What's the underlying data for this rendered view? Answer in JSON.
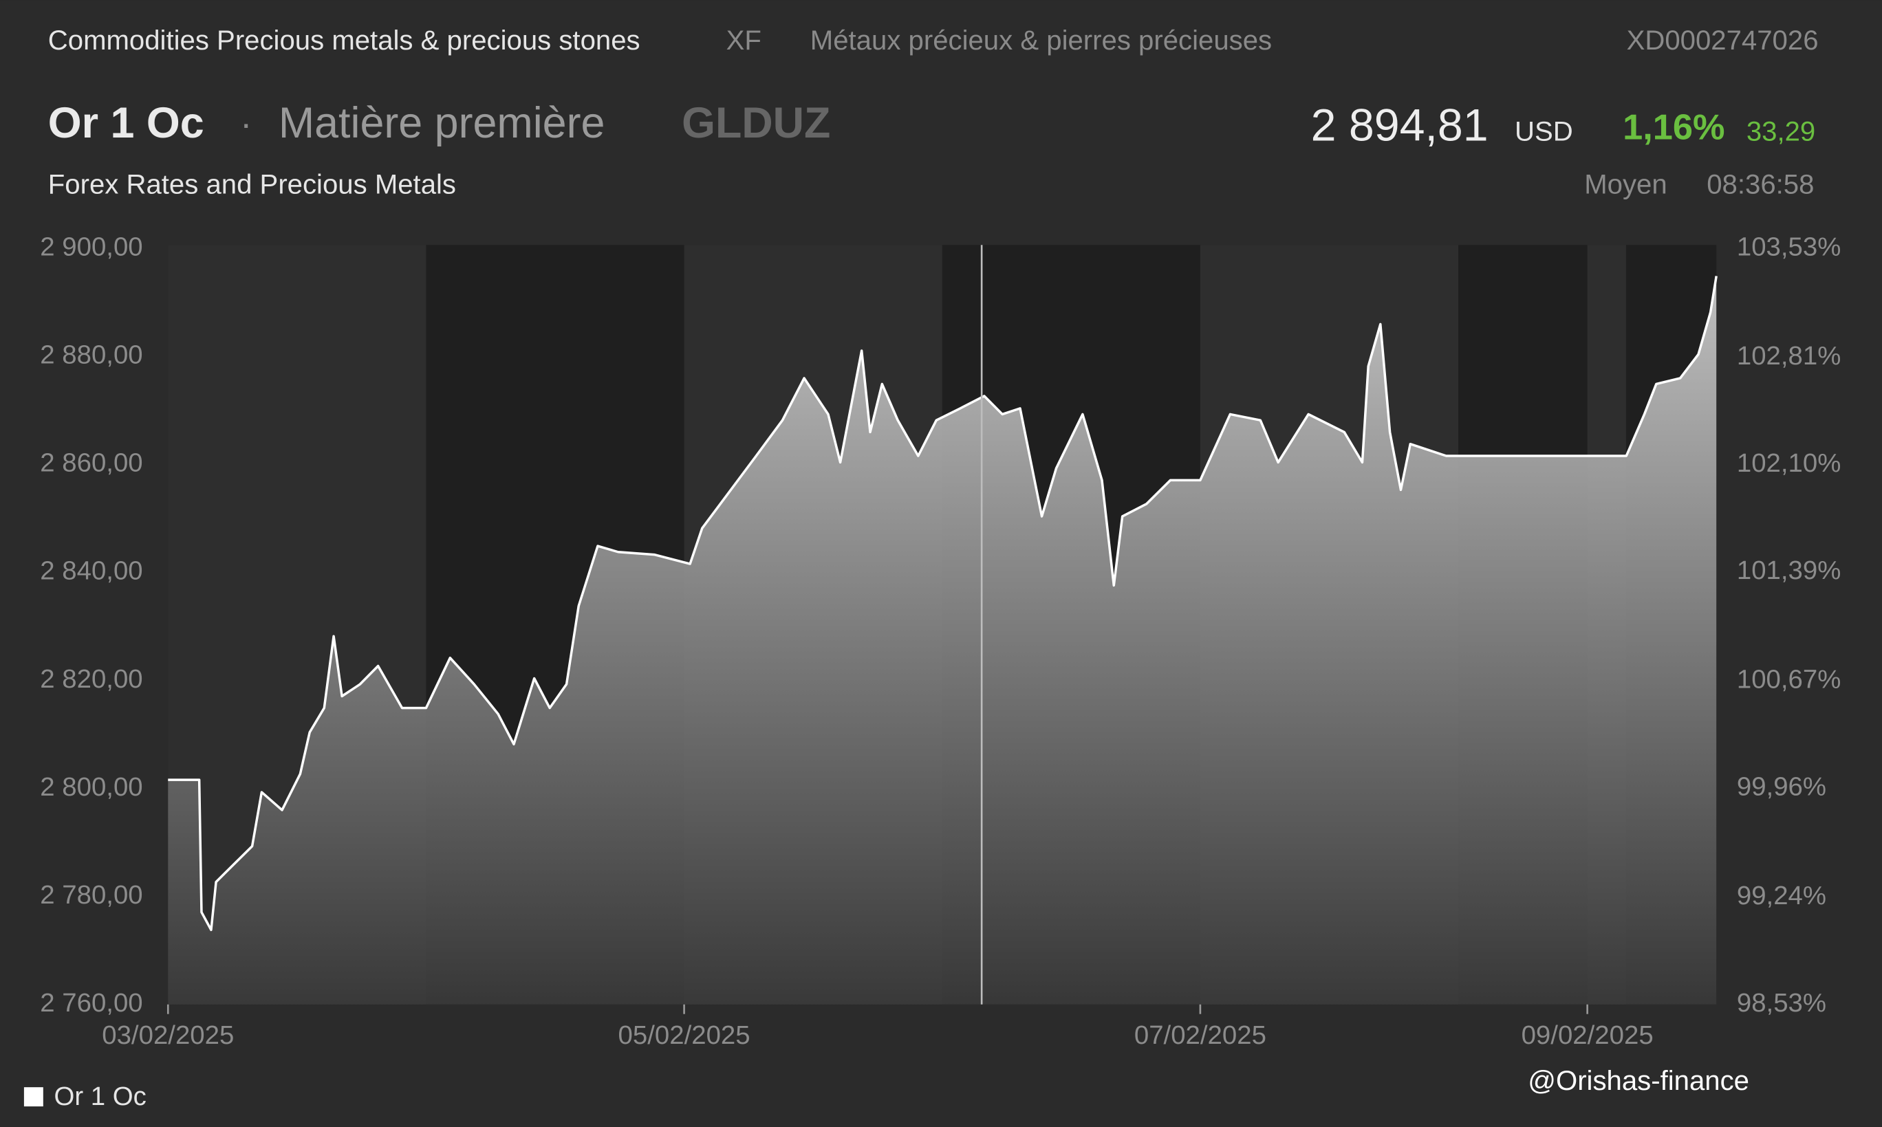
{
  "header": {
    "category": "Commodities Precious metals & precious stones",
    "exchange": "XF",
    "category_fr": "Métaux précieux & pierres précieuses",
    "isin": "XD0002747026",
    "name": "Or 1 Oc",
    "separator": "·",
    "asset_type": "Matière première",
    "symbol": "GLDUZ",
    "price": "2 894,81",
    "currency": "USD",
    "change_percent": "1,16%",
    "change": "33,29",
    "source": "Forex Rates and Precious Metals",
    "price_type": "Moyen",
    "time": "08:36:58",
    "watermark": "@Orishas-finance"
  },
  "chart_data": {
    "type": "area",
    "x": [
      0,
      0.121,
      0.13,
      0.167,
      0.186,
      0.256,
      0.326,
      0.363,
      0.442,
      0.512,
      0.549,
      0.605,
      0.642,
      0.674,
      0.744,
      0.814,
      0.907,
      1.0,
      1.093,
      1.186,
      1.279,
      1.34,
      1.419,
      1.479,
      1.544,
      1.591,
      1.665,
      1.744,
      1.884,
      2.023,
      2.07,
      2.14,
      2.279,
      2.381,
      2.465,
      2.558,
      2.605,
      2.688,
      2.721,
      2.767,
      2.828,
      2.907,
      2.977,
      3.07,
      3.163,
      3.233,
      3.302,
      3.386,
      3.442,
      3.544,
      3.619,
      3.665,
      3.698,
      3.791,
      3.884,
      4.0,
      4.116,
      4.233,
      4.302,
      4.419,
      4.558,
      4.628,
      4.651,
      4.698,
      4.735,
      4.777,
      4.814,
      4.884,
      4.953,
      5.651,
      5.721,
      5.767,
      5.86,
      5.93,
      5.977,
      6.0
    ],
    "series": [
      {
        "name": "Or 1 Oc",
        "color": "#ffffff",
        "values": [
          2801.6,
          2801.6,
          2777.1,
          2773.8,
          2782.7,
          2786,
          2789.3,
          2799.3,
          2796,
          2802.7,
          2810.4,
          2814.9,
          2828.2,
          2817.1,
          2819.3,
          2822.7,
          2814.9,
          2814.9,
          2824.2,
          2819.3,
          2813.8,
          2808.2,
          2820.4,
          2814.9,
          2819.3,
          2833.8,
          2844.9,
          2843.8,
          2843.3,
          2841.6,
          2848.2,
          2852.7,
          2861.6,
          2868.2,
          2876,
          2869.3,
          2860.4,
          2881.1,
          2866,
          2874.9,
          2868.2,
          2861.6,
          2868.2,
          2870.4,
          2872.7,
          2869.3,
          2870.4,
          2850.4,
          2859.3,
          2869.3,
          2857.1,
          2837.6,
          2850.4,
          2852.7,
          2857.1,
          2857.1,
          2869.3,
          2868.2,
          2860.4,
          2869.3,
          2866,
          2860.4,
          2878.2,
          2886,
          2866,
          2855.3,
          2863.8,
          2862.7,
          2861.6,
          2861.6,
          2869.3,
          2874.9,
          2876,
          2880.4,
          2888.2,
          2894.9
        ]
      }
    ],
    "xlim": [
      0,
      6
    ],
    "xticks": [
      {
        "value": 0,
        "label": "03/02/2025"
      },
      {
        "value": 2,
        "label": "05/02/2025"
      },
      {
        "value": 4,
        "label": "07/02/2025"
      },
      {
        "value": 5.5,
        "label": "09/02/2025"
      }
    ],
    "ylim": [
      2760,
      2900
    ],
    "yticks": [
      {
        "value": 2760,
        "label": "2 760,00"
      },
      {
        "value": 2780,
        "label": "2 780,00"
      },
      {
        "value": 2800,
        "label": "2 800,00"
      },
      {
        "value": 2820,
        "label": "2 820,00"
      },
      {
        "value": 2840,
        "label": "2 840,00"
      },
      {
        "value": 2860,
        "label": "2 860,00"
      },
      {
        "value": 2880,
        "label": "2 880,00"
      },
      {
        "value": 2900,
        "label": "2 900,00"
      }
    ],
    "y2lim": [
      98.53,
      103.53
    ],
    "y2ticks": [
      {
        "value": 98.53,
        "label": "98,53%"
      },
      {
        "value": 99.24,
        "label": "99,24%"
      },
      {
        "value": 99.96,
        "label": "99,96%"
      },
      {
        "value": 100.67,
        "label": "100,67%"
      },
      {
        "value": 101.39,
        "label": "101,39%"
      },
      {
        "value": 102.1,
        "label": "102,10%"
      },
      {
        "value": 102.81,
        "label": "102,81%"
      },
      {
        "value": 103.53,
        "label": "103,53%"
      }
    ],
    "shaded_spans": [
      [
        1,
        2
      ],
      [
        3,
        4
      ],
      [
        5,
        5.5
      ],
      [
        5.65,
        6
      ]
    ],
    "cursor_x": 3.153,
    "grid": false
  }
}
